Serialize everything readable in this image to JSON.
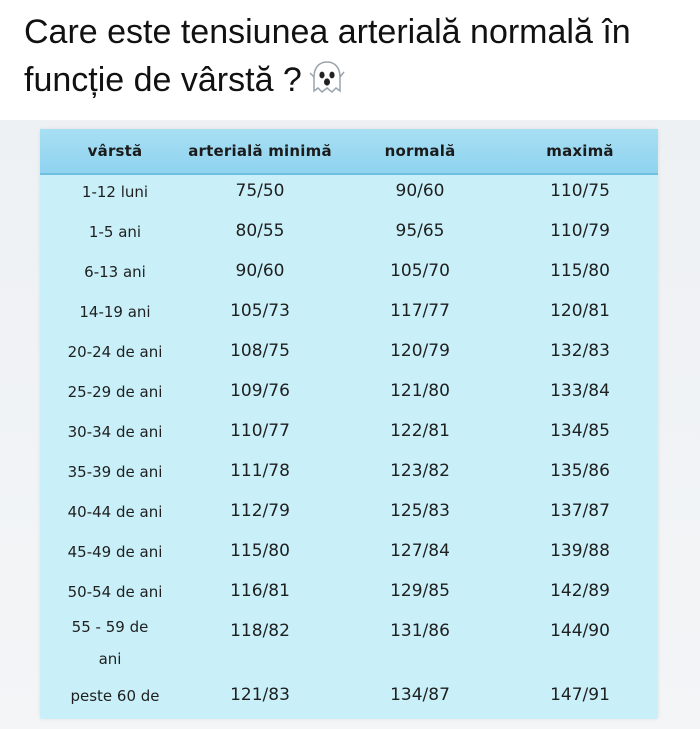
{
  "post": {
    "title": "Care este tensiunea arterială normală în funcție de vârstă ?",
    "emoji": "ghost-emoji-icon"
  },
  "table": {
    "headers": [
      "vârstă",
      "arterială minimă",
      "normală",
      "maximă"
    ],
    "rows": [
      {
        "age": "1-12 luni",
        "min": "75/50",
        "normal": "90/60",
        "max": "110/75"
      },
      {
        "age": "1-5 ani",
        "min": "80/55",
        "normal": "95/65",
        "max": "110/79"
      },
      {
        "age": "6-13 ani",
        "min": "90/60",
        "normal": "105/70",
        "max": "115/80"
      },
      {
        "age": "14-19 ani",
        "min": "105/73",
        "normal": "117/77",
        "max": "120/81"
      },
      {
        "age": "20-24 de ani",
        "min": "108/75",
        "normal": "120/79",
        "max": "132/83"
      },
      {
        "age": "25-29 de ani",
        "min": "109/76",
        "normal": "121/80",
        "max": "133/84"
      },
      {
        "age": "30-34 de ani",
        "min": "110/77",
        "normal": "122/81",
        "max": "134/85"
      },
      {
        "age": "35-39 de ani",
        "min": "111/78",
        "normal": "123/82",
        "max": "135/86"
      },
      {
        "age": "40-44 de ani",
        "min": "112/79",
        "normal": "125/83",
        "max": "137/87"
      },
      {
        "age": "45-49 de ani",
        "min": "115/80",
        "normal": "127/84",
        "max": "139/88"
      },
      {
        "age": "50-54 de ani",
        "min": "116/81",
        "normal": "129/85",
        "max": "142/89"
      },
      {
        "age": "55 - 59 de ani",
        "min": "118/82",
        "normal": "131/86",
        "max": "144/90"
      },
      {
        "age": "peste 60 de",
        "min": "121/83",
        "normal": "134/87",
        "max": "147/91"
      }
    ]
  },
  "colors": {
    "table_bg": "#c9f0f8",
    "header_bg": "#9fdbf2"
  }
}
